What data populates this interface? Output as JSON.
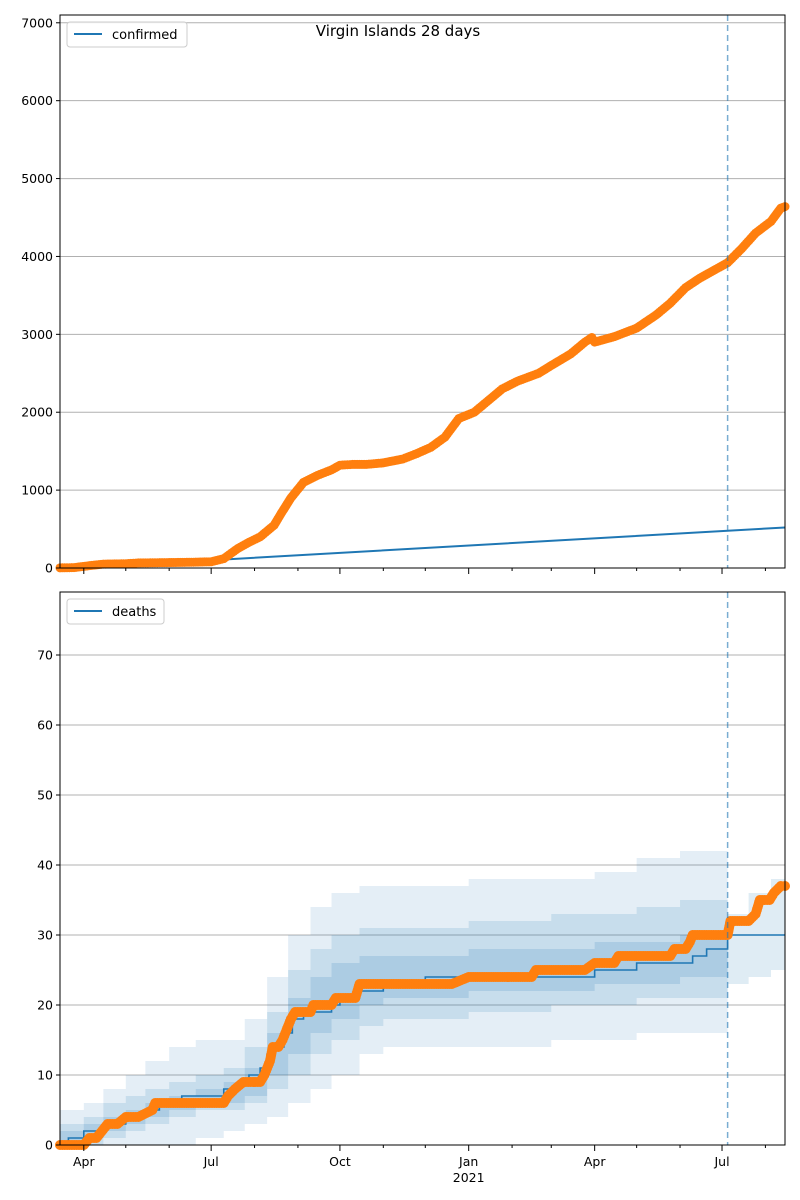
{
  "figure": {
    "title": "Virgin Islands 28 days",
    "colors": {
      "model": "#1f77b4",
      "observed": "#ff7f0e",
      "band": "#1f77b4",
      "grid": "#b0b0b0",
      "marker_line": "#1f77b4"
    },
    "cutoff_date": "2021-07-05",
    "x_axis": {
      "range": [
        "2020-03-15",
        "2021-08-15"
      ],
      "major_ticks": [
        {
          "date": "2020-04-01",
          "label": "Apr"
        },
        {
          "date": "2020-07-01",
          "label": "Jul"
        },
        {
          "date": "2020-10-01",
          "label": "Oct"
        },
        {
          "date": "2021-01-01",
          "label": "Jan"
        },
        {
          "date": "2021-04-01",
          "label": "Apr"
        },
        {
          "date": "2021-07-01",
          "label": "Jul"
        }
      ],
      "year_label": "2021",
      "year_label_date": "2021-01-01",
      "minor_ticks": [
        "2020-05-01",
        "2020-06-01",
        "2020-08-01",
        "2020-09-01",
        "2020-11-01",
        "2020-12-01",
        "2021-02-01",
        "2021-03-01",
        "2021-05-01",
        "2021-06-01",
        "2021-08-01"
      ]
    }
  },
  "chart_data": [
    {
      "type": "line",
      "panel": "top",
      "legend": [
        "confirmed"
      ],
      "legend_position": "upper-left",
      "ylim": [
        0,
        7100
      ],
      "yticks": [
        0,
        1000,
        2000,
        3000,
        4000,
        5000,
        6000,
        7000
      ],
      "grid": "y",
      "series": [
        {
          "name": "confirmed",
          "kind": "model-line",
          "points": [
            [
              "2020-03-15",
              5
            ],
            [
              "2020-07-01",
              100
            ],
            [
              "2021-08-15",
              520
            ]
          ]
        },
        {
          "kind": "observed-markers",
          "points": [
            [
              "2020-03-15",
              2
            ],
            [
              "2020-03-25",
              5
            ],
            [
              "2020-04-05",
              30
            ],
            [
              "2020-04-15",
              50
            ],
            [
              "2020-05-01",
              55
            ],
            [
              "2020-05-10",
              65
            ],
            [
              "2020-06-01",
              70
            ],
            [
              "2020-06-20",
              75
            ],
            [
              "2020-07-01",
              80
            ],
            [
              "2020-07-10",
              120
            ],
            [
              "2020-07-20",
              250
            ],
            [
              "2020-07-28",
              330
            ],
            [
              "2020-08-05",
              400
            ],
            [
              "2020-08-15",
              550
            ],
            [
              "2020-08-20",
              700
            ],
            [
              "2020-08-27",
              900
            ],
            [
              "2020-09-05",
              1100
            ],
            [
              "2020-09-15",
              1190
            ],
            [
              "2020-09-25",
              1260
            ],
            [
              "2020-10-01",
              1320
            ],
            [
              "2020-10-10",
              1330
            ],
            [
              "2020-10-20",
              1330
            ],
            [
              "2020-11-01",
              1350
            ],
            [
              "2020-11-15",
              1400
            ],
            [
              "2020-11-25",
              1470
            ],
            [
              "2020-12-05",
              1550
            ],
            [
              "2020-12-15",
              1680
            ],
            [
              "2020-12-20",
              1800
            ],
            [
              "2020-12-25",
              1920
            ],
            [
              "2021-01-05",
              2000
            ],
            [
              "2021-01-15",
              2150
            ],
            [
              "2021-01-25",
              2300
            ],
            [
              "2021-02-05",
              2400
            ],
            [
              "2021-02-20",
              2500
            ],
            [
              "2021-03-01",
              2600
            ],
            [
              "2021-03-15",
              2750
            ],
            [
              "2021-03-25",
              2900
            ],
            [
              "2021-03-30",
              2960
            ],
            [
              "2021-04-01",
              2900
            ],
            [
              "2021-04-15",
              2970
            ],
            [
              "2021-05-01",
              3080
            ],
            [
              "2021-05-15",
              3250
            ],
            [
              "2021-05-25",
              3400
            ],
            [
              "2021-06-05",
              3600
            ],
            [
              "2021-06-15",
              3720
            ],
            [
              "2021-06-25",
              3820
            ],
            [
              "2021-07-05",
              3920
            ],
            [
              "2021-07-15",
              4100
            ],
            [
              "2021-07-25",
              4300
            ],
            [
              "2021-08-05",
              4450
            ],
            [
              "2021-08-12",
              4620
            ],
            [
              "2021-08-15",
              4640
            ]
          ]
        }
      ]
    },
    {
      "type": "line",
      "panel": "bottom",
      "legend": [
        "deaths"
      ],
      "legend_position": "upper-left",
      "ylim": [
        0,
        79
      ],
      "yticks": [
        0,
        10,
        20,
        30,
        40,
        50,
        60,
        70
      ],
      "grid": "y",
      "series": [
        {
          "name": "deaths",
          "kind": "model-step",
          "points": [
            [
              "2020-03-15",
              0
            ],
            [
              "2020-03-21",
              1
            ],
            [
              "2020-04-01",
              2
            ],
            [
              "2020-04-15",
              3
            ],
            [
              "2020-05-01",
              4
            ],
            [
              "2020-05-15",
              5
            ],
            [
              "2020-05-25",
              6
            ],
            [
              "2020-06-10",
              7
            ],
            [
              "2020-07-10",
              8
            ],
            [
              "2020-07-20",
              9
            ],
            [
              "2020-07-28",
              10
            ],
            [
              "2020-08-05",
              11
            ],
            [
              "2020-08-10",
              13
            ],
            [
              "2020-08-15",
              14
            ],
            [
              "2020-08-22",
              16
            ],
            [
              "2020-08-28",
              18
            ],
            [
              "2020-09-05",
              19
            ],
            [
              "2020-09-25",
              20
            ],
            [
              "2020-10-01",
              21
            ],
            [
              "2020-10-15",
              22
            ],
            [
              "2020-11-01",
              23
            ],
            [
              "2020-12-01",
              24
            ],
            [
              "2021-04-01",
              25
            ],
            [
              "2021-05-01",
              26
            ],
            [
              "2021-06-10",
              27
            ],
            [
              "2021-06-20",
              28
            ],
            [
              "2021-07-05",
              30
            ],
            [
              "2021-08-15",
              30
            ]
          ]
        },
        {
          "kind": "band-outer",
          "points": [
            [
              "2020-03-15",
              0,
              5
            ],
            [
              "2020-04-01",
              0,
              6
            ],
            [
              "2020-04-15",
              0,
              8
            ],
            [
              "2020-05-01",
              0,
              10
            ],
            [
              "2020-05-15",
              0,
              12
            ],
            [
              "2020-06-01",
              0,
              14
            ],
            [
              "2020-06-20",
              1,
              15
            ],
            [
              "2020-07-10",
              2,
              15
            ],
            [
              "2020-07-25",
              3,
              18
            ],
            [
              "2020-08-10",
              4,
              24
            ],
            [
              "2020-08-25",
              6,
              30
            ],
            [
              "2020-09-10",
              8,
              34
            ],
            [
              "2020-09-25",
              10,
              36
            ],
            [
              "2020-10-15",
              13,
              37
            ],
            [
              "2020-11-01",
              14,
              37
            ],
            [
              "2021-01-01",
              14,
              38
            ],
            [
              "2021-03-01",
              15,
              38
            ],
            [
              "2021-04-01",
              15,
              39
            ],
            [
              "2021-05-01",
              16,
              41
            ],
            [
              "2021-06-01",
              16,
              42
            ],
            [
              "2021-07-05",
              16,
              42
            ]
          ]
        },
        {
          "kind": "band-mid",
          "points": [
            [
              "2020-03-15",
              0,
              3
            ],
            [
              "2020-04-01",
              0,
              4
            ],
            [
              "2020-04-15",
              1,
              6
            ],
            [
              "2020-05-01",
              2,
              7
            ],
            [
              "2020-05-15",
              3,
              8
            ],
            [
              "2020-06-01",
              4,
              9
            ],
            [
              "2020-06-20",
              5,
              10
            ],
            [
              "2020-07-10",
              5,
              11
            ],
            [
              "2020-07-25",
              6,
              14
            ],
            [
              "2020-08-10",
              8,
              19
            ],
            [
              "2020-08-25",
              10,
              25
            ],
            [
              "2020-09-10",
              13,
              28
            ],
            [
              "2020-09-25",
              15,
              30
            ],
            [
              "2020-10-15",
              17,
              31
            ],
            [
              "2020-11-01",
              18,
              31
            ],
            [
              "2021-01-01",
              19,
              32
            ],
            [
              "2021-03-01",
              20,
              33
            ],
            [
              "2021-04-01",
              20,
              33
            ],
            [
              "2021-05-01",
              21,
              34
            ],
            [
              "2021-06-01",
              21,
              35
            ],
            [
              "2021-07-05",
              22,
              35
            ]
          ]
        },
        {
          "kind": "band-inner",
          "points": [
            [
              "2020-03-15",
              0,
              2
            ],
            [
              "2020-04-01",
              1,
              3
            ],
            [
              "2020-04-15",
              2,
              4
            ],
            [
              "2020-05-01",
              3,
              5
            ],
            [
              "2020-05-15",
              4,
              6
            ],
            [
              "2020-06-01",
              5,
              7
            ],
            [
              "2020-06-20",
              6,
              8
            ],
            [
              "2020-07-10",
              6,
              9
            ],
            [
              "2020-07-25",
              7,
              11
            ],
            [
              "2020-08-10",
              10,
              16
            ],
            [
              "2020-08-25",
              13,
              21
            ],
            [
              "2020-09-10",
              16,
              24
            ],
            [
              "2020-09-25",
              18,
              26
            ],
            [
              "2020-10-15",
              20,
              27
            ],
            [
              "2020-11-01",
              21,
              27
            ],
            [
              "2021-01-01",
              22,
              28
            ],
            [
              "2021-03-01",
              22,
              28
            ],
            [
              "2021-04-01",
              23,
              29
            ],
            [
              "2021-05-01",
              23,
              29
            ],
            [
              "2021-06-01",
              24,
              30
            ],
            [
              "2021-07-05",
              24,
              30
            ]
          ]
        },
        {
          "kind": "band-after-cutoff",
          "points": [
            [
              "2021-07-05",
              23,
              33
            ],
            [
              "2021-07-20",
              24,
              36
            ],
            [
              "2021-08-05",
              25,
              38
            ],
            [
              "2021-08-15",
              25,
              40
            ]
          ]
        },
        {
          "kind": "observed-markers",
          "points": [
            [
              "2020-03-15",
              0
            ],
            [
              "2020-04-01",
              0
            ],
            [
              "2020-04-05",
              1
            ],
            [
              "2020-04-10",
              1
            ],
            [
              "2020-04-14",
              2
            ],
            [
              "2020-04-18",
              3
            ],
            [
              "2020-04-25",
              3
            ],
            [
              "2020-05-01",
              4
            ],
            [
              "2020-05-10",
              4
            ],
            [
              "2020-05-20",
              5
            ],
            [
              "2020-05-22",
              6
            ],
            [
              "2020-06-15",
              6
            ],
            [
              "2020-07-10",
              6
            ],
            [
              "2020-07-13",
              7
            ],
            [
              "2020-07-18",
              8
            ],
            [
              "2020-07-24",
              9
            ],
            [
              "2020-08-05",
              9
            ],
            [
              "2020-08-08",
              10
            ],
            [
              "2020-08-10",
              11
            ],
            [
              "2020-08-12",
              12
            ],
            [
              "2020-08-14",
              14
            ],
            [
              "2020-08-18",
              14
            ],
            [
              "2020-08-21",
              15
            ],
            [
              "2020-08-23",
              16
            ],
            [
              "2020-08-25",
              17
            ],
            [
              "2020-08-27",
              18
            ],
            [
              "2020-08-30",
              19
            ],
            [
              "2020-09-10",
              19
            ],
            [
              "2020-09-12",
              20
            ],
            [
              "2020-09-25",
              20
            ],
            [
              "2020-09-28",
              21
            ],
            [
              "2020-10-12",
              21
            ],
            [
              "2020-10-15",
              23
            ],
            [
              "2020-11-15",
              23
            ],
            [
              "2020-12-20",
              23
            ],
            [
              "2021-01-01",
              24
            ],
            [
              "2021-02-15",
              24
            ],
            [
              "2021-02-18",
              25
            ],
            [
              "2021-03-25",
              25
            ],
            [
              "2021-04-01",
              26
            ],
            [
              "2021-04-15",
              26
            ],
            [
              "2021-04-18",
              27
            ],
            [
              "2021-05-25",
              27
            ],
            [
              "2021-05-28",
              28
            ],
            [
              "2021-06-05",
              28
            ],
            [
              "2021-06-08",
              29
            ],
            [
              "2021-06-10",
              30
            ],
            [
              "2021-07-05",
              30
            ],
            [
              "2021-07-07",
              32
            ],
            [
              "2021-07-20",
              32
            ],
            [
              "2021-07-25",
              33
            ],
            [
              "2021-07-28",
              35
            ],
            [
              "2021-08-04",
              35
            ],
            [
              "2021-08-07",
              36
            ],
            [
              "2021-08-12",
              37
            ],
            [
              "2021-08-15",
              37
            ]
          ]
        }
      ]
    }
  ]
}
